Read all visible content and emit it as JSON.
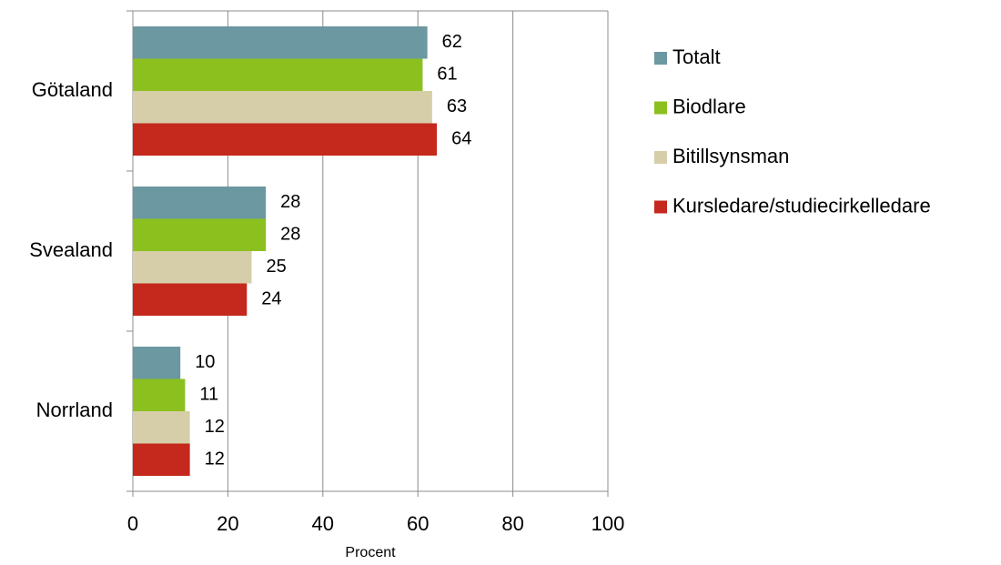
{
  "chart_data": {
    "type": "bar",
    "orientation": "horizontal",
    "categories": [
      "Götaland",
      "Svealand",
      "Norrland"
    ],
    "series": [
      {
        "name": "Totalt",
        "color": "#6b98a1",
        "values": [
          62,
          28,
          10
        ]
      },
      {
        "name": "Biodlare",
        "color": "#8cc01f",
        "values": [
          61,
          28,
          11
        ]
      },
      {
        "name": "Bitillsynsman",
        "color": "#d6cea8",
        "values": [
          63,
          25,
          12
        ]
      },
      {
        "name": "Kursledare/studiecirkelledare",
        "color": "#c5281c",
        "values": [
          64,
          24,
          12
        ]
      }
    ],
    "xlabel": "Procent",
    "xlim": [
      0,
      100
    ],
    "xticks": [
      0,
      20,
      40,
      60,
      80,
      100
    ],
    "grid": true,
    "legend": "right"
  }
}
